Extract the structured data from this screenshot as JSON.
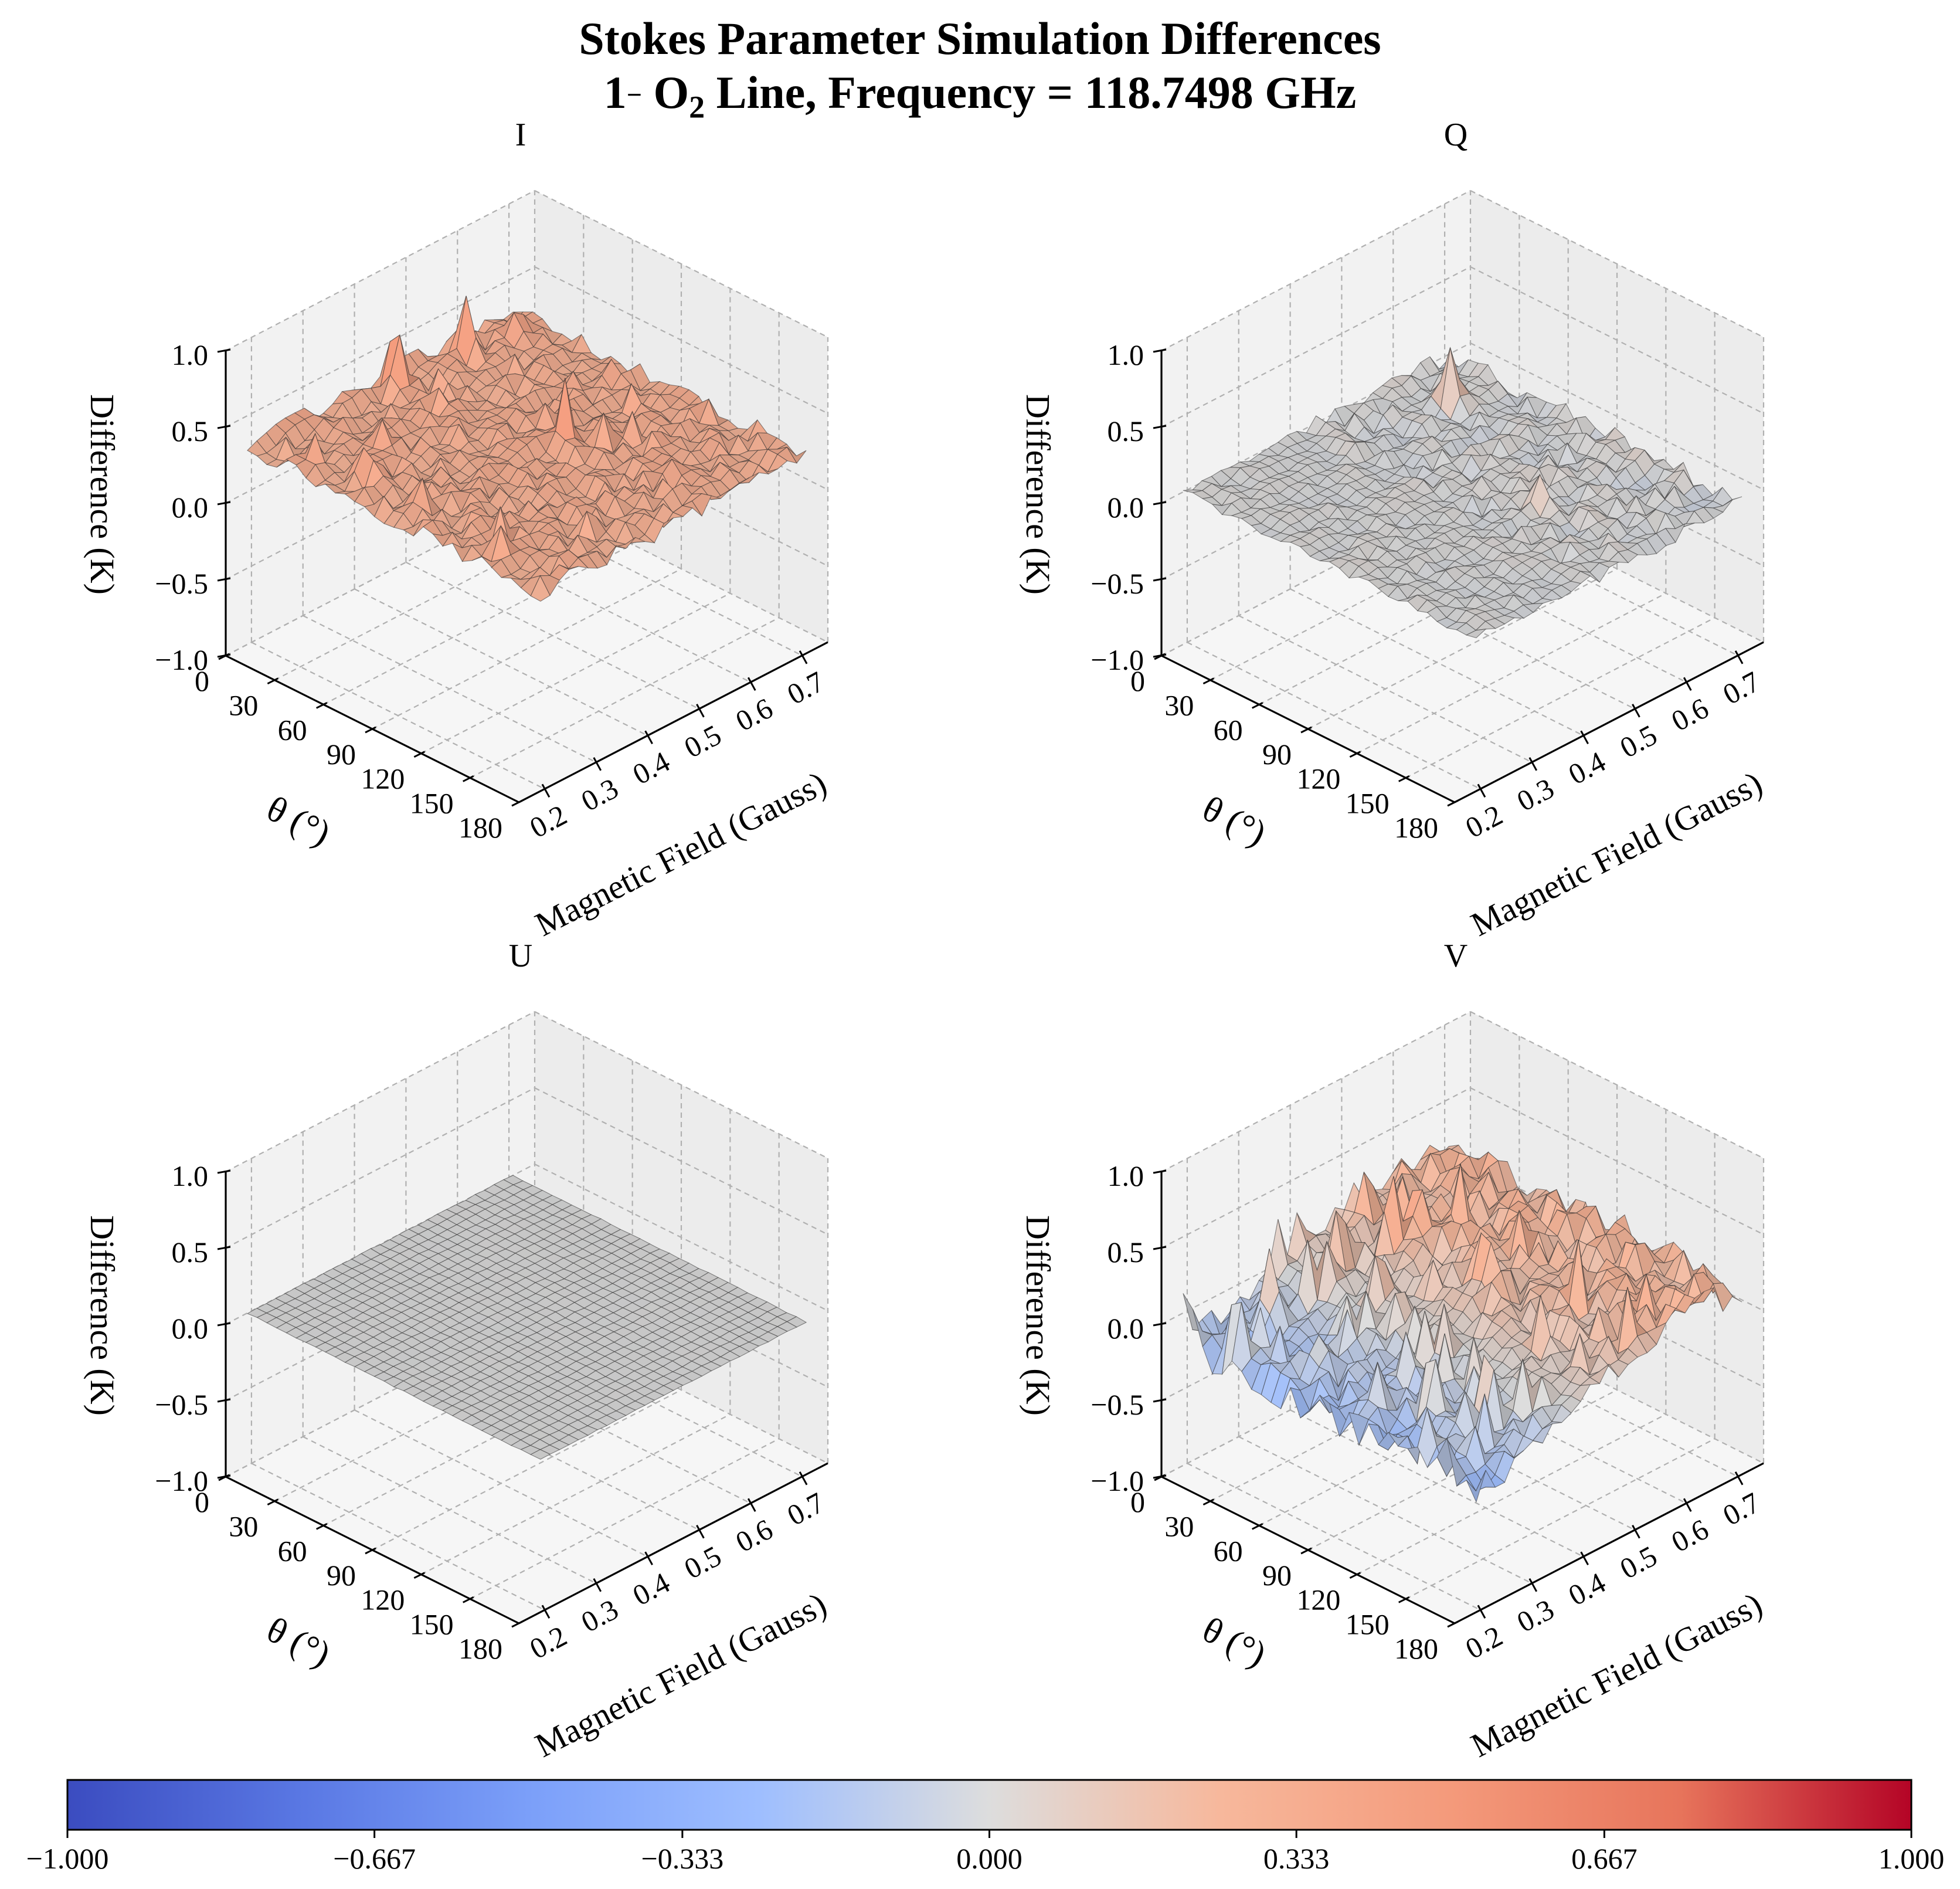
{
  "title": {
    "line1": "Stokes Parameter Simulation Differences",
    "line2_num": "1",
    "line2_sup": "−",
    "line2_mol": "O",
    "line2_sub": "2",
    "line2_rest": " Line, Frequency = 118.7498 GHz"
  },
  "chart_data": {
    "type": "surface3d",
    "colormap": "coolwarm",
    "x_label": "Magnetic Field (Gauss)",
    "y_label": "θ (°)",
    "z_label": "Difference (K)",
    "x_ticks": [
      "0.2",
      "0.3",
      "0.4",
      "0.5",
      "0.6",
      "0.7"
    ],
    "x_range": [
      0.15,
      0.75
    ],
    "y_ticks": [
      "0",
      "30",
      "60",
      "90",
      "120",
      "150",
      "180"
    ],
    "y_range": [
      0,
      180
    ],
    "z_ticks": [
      "−1.0",
      "−0.5",
      "0.0",
      "0.5",
      "1.0"
    ],
    "z_range": [
      -1.0,
      1.0
    ],
    "grid": true,
    "colorbar": {
      "orientation": "horizontal",
      "ticks": [
        "−1.000",
        "−0.667",
        "−0.333",
        "0.000",
        "0.333",
        "0.667",
        "1.000"
      ],
      "range": [
        -1.0,
        1.0
      ]
    },
    "panels": [
      {
        "name": "I",
        "base": 0.3,
        "noise": 0.06,
        "v_slope": 0.0,
        "spikes": [
          {
            "b": 0.45,
            "t": 10,
            "h": 0.45
          },
          {
            "b": 0.58,
            "t": 12,
            "h": 0.4
          },
          {
            "b": 0.5,
            "t": 95,
            "h": 0.35
          },
          {
            "b": 0.66,
            "t": 20,
            "h": 0.2
          },
          {
            "b": 0.25,
            "t": 55,
            "h": 0.2
          }
        ]
      },
      {
        "name": "Q",
        "base": 0.0,
        "noise": 0.03,
        "v_slope": 0.0,
        "spikes": [
          {
            "b": 0.62,
            "t": 30,
            "h": 0.45
          },
          {
            "b": 0.5,
            "t": 120,
            "h": 0.2
          }
        ]
      },
      {
        "name": "U",
        "base": 0.0,
        "noise": 0.004,
        "v_slope": 0.0,
        "spikes": []
      },
      {
        "name": "V",
        "base": 0.0,
        "noise": 0.08,
        "v_slope": 0.25,
        "spikes": [
          {
            "b": 0.3,
            "t": 20,
            "h": 0.45
          },
          {
            "b": 0.38,
            "t": 30,
            "h": 0.35
          },
          {
            "b": 0.26,
            "t": 60,
            "h": 0.3
          },
          {
            "b": 0.52,
            "t": 40,
            "h": 0.3
          }
        ]
      }
    ]
  }
}
